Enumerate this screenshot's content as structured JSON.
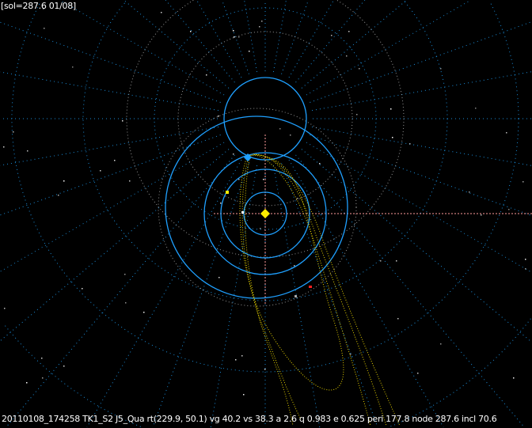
{
  "header": {
    "sol_label": "[sol=287.6 01/08]"
  },
  "footer": {
    "status_line": "20110108_174258 TK1_S2  J5_Qua rt(229.9, 50.1) vg 40.2 vs 38.3 a 2.6 q 0.983 e 0.625 peri 177.8 node 287.6 incl 70.6"
  },
  "colors": {
    "background": "#000000",
    "orbit": "#1fa0ff",
    "grid": "#1a8cd8",
    "sun": "#ffee00",
    "trail": "#e6d200",
    "axis": "#ff9c9c",
    "text": "#ffffff"
  },
  "icons": {
    "sun": "yellow-diamond",
    "planet": "blue-diamond"
  }
}
